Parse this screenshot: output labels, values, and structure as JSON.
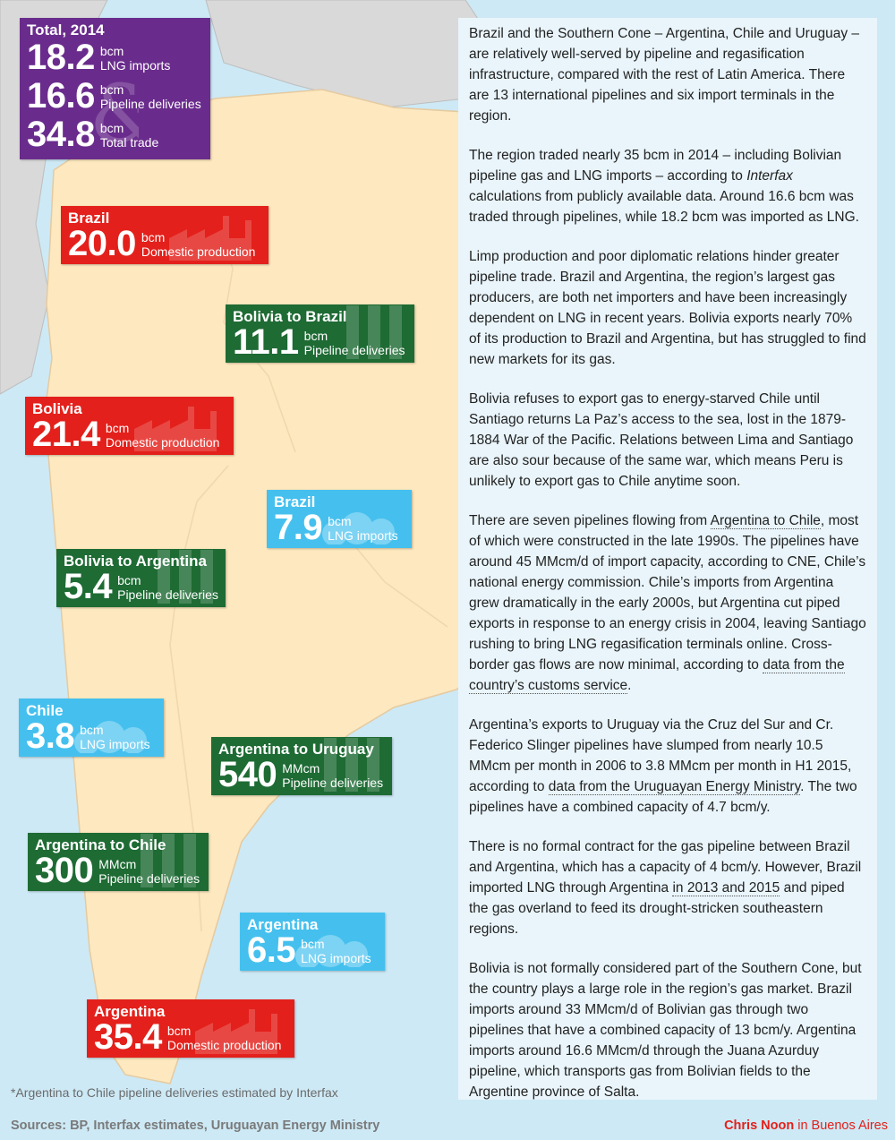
{
  "boxes": {
    "total": {
      "title": "Total, 2014",
      "rows": [
        {
          "value": "18.2",
          "unit": "bcm",
          "label": "LNG imports"
        },
        {
          "value": "16.6",
          "unit": "bcm",
          "label": "Pipeline deliveries"
        },
        {
          "value": "34.8",
          "unit": "bcm",
          "label": "Total trade"
        }
      ]
    },
    "brazil_production": {
      "title": "Brazil",
      "value": "20.0",
      "unit": "bcm",
      "label": "Domestic production"
    },
    "bolivia_to_brazil": {
      "title": "Bolivia to Brazil",
      "value": "11.1",
      "unit": "bcm",
      "label": "Pipeline deliveries"
    },
    "bolivia_production": {
      "title": "Bolivia",
      "value": "21.4",
      "unit": "bcm",
      "label": "Domestic production"
    },
    "brazil_lng": {
      "title": "Brazil",
      "value": "7.9",
      "unit": "bcm",
      "label": "LNG imports"
    },
    "bolivia_to_argentina": {
      "title": "Bolivia to Argentina",
      "value": "5.4",
      "unit": "bcm",
      "label": "Pipeline deliveries"
    },
    "chile_lng": {
      "title": "Chile",
      "value": "3.8",
      "unit": "bcm",
      "label": "LNG imports"
    },
    "argentina_to_uruguay": {
      "title": "Argentina to Uruguay",
      "value": "540",
      "unit": "MMcm",
      "label": "Pipeline deliveries"
    },
    "argentina_to_chile": {
      "title": "Argentina to Chile",
      "value": "300",
      "unit": "MMcm",
      "label": "Pipeline deliveries"
    },
    "argentina_lng": {
      "title": "Argentina",
      "value": "6.5",
      "unit": "bcm",
      "label": "LNG imports"
    },
    "argentina_production": {
      "title": "Argentina",
      "value": "35.4",
      "unit": "bcm",
      "label": "Domestic production"
    }
  },
  "article": {
    "p1": "Brazil and the Southern Cone – Argentina, Chile and Uruguay – are relatively well-served by pipeline and regasification infrastructure, compared with the rest of Latin America. There are 13 international pipelines and six import terminals in the region.",
    "p2a": "The region traded nearly 35 bcm in 2014 – including Bolivian pipeline gas and LNG imports – according to ",
    "p2_italic": "Interfax",
    "p2b": " calculations from publicly available data. Around 16.6 bcm was traded through pipelines, while 18.2 bcm was imported as LNG.",
    "p3": "Limp production and poor diplomatic relations hinder greater pipeline trade. Brazil and Argentina, the region’s largest gas producers, are both net importers and have been increasingly dependent on LNG in recent years. Bolivia exports nearly 70% of its production to Brazil and Argentina, but has struggled to find new markets for its gas.",
    "p4": "Bolivia refuses to export gas to energy-starved Chile until Santiago returns La Paz’s access to the sea, lost in the 1879-1884 War of the Pacific. Relations between Lima and Santiago are also sour because of the same war, which means Peru is unlikely to export gas to Chile anytime soon.",
    "p5a": "There are seven pipelines flowing from ",
    "p5_link1": "Argentina to Chile",
    "p5b": ", most of which were constructed in the late 1990s. The pipelines have around 45 MMcm/d of import capacity, according to CNE, Chile’s national energy commission. Chile’s imports from Argentina grew dramatically in the early 2000s, but Argentina cut piped exports in response to an energy crisis in 2004, leaving Santiago rushing to bring LNG regasification terminals online. Cross-border gas flows are now minimal, according to ",
    "p5_link2": "data from the country’s customs service",
    "p5c": ".",
    "p6a": "Argentina’s exports to Uruguay via the Cruz del Sur and Cr. Federico Slinger pipelines have slumped from nearly 10.5 MMcm per month in 2006 to 3.8 MMcm per month in H1 2015, according to ",
    "p6_link": "data from the Uruguayan Energy Ministry",
    "p6b": ". The two pipelines have a combined capacity of 4.7 bcm/y.",
    "p7a": "There is no formal contract for the gas pipeline between Brazil and Argentina, which has a capacity of 4 bcm/y. However, Brazil imported LNG through Argentina ",
    "p7_link": "in 2013 and 2015",
    "p7b": " and piped the gas overland to feed its drought-stricken southeastern regions.",
    "p8": "Bolivia is not formally considered part of the Southern Cone, but the country plays a large role in the region’s gas market. Brazil imports around 33 MMcm/d of Bolivian gas through two pipelines that have a combined capacity of 13 bcm/y. Argentina imports around 16.6 MMcm/d through the Juana Azurduy pipeline, which transports gas from Bolivian fields to the Argentine province of Salta."
  },
  "footnote": "*Argentina to Chile pipeline deliveries estimated by Interfax",
  "sources": "Sources: BP, Interfax estimates, Uruguayan Energy Ministry",
  "credit": {
    "author": "Chris Noon",
    "location": " in Buenos Aires"
  },
  "colors": {
    "purple": "#6a2c8c",
    "red": "#e3201b",
    "green": "#1e6b34",
    "blue": "#45c0ee",
    "land": "#fde8bf",
    "neighbor": "#d9d9d9",
    "sea": "#cde9f5"
  }
}
